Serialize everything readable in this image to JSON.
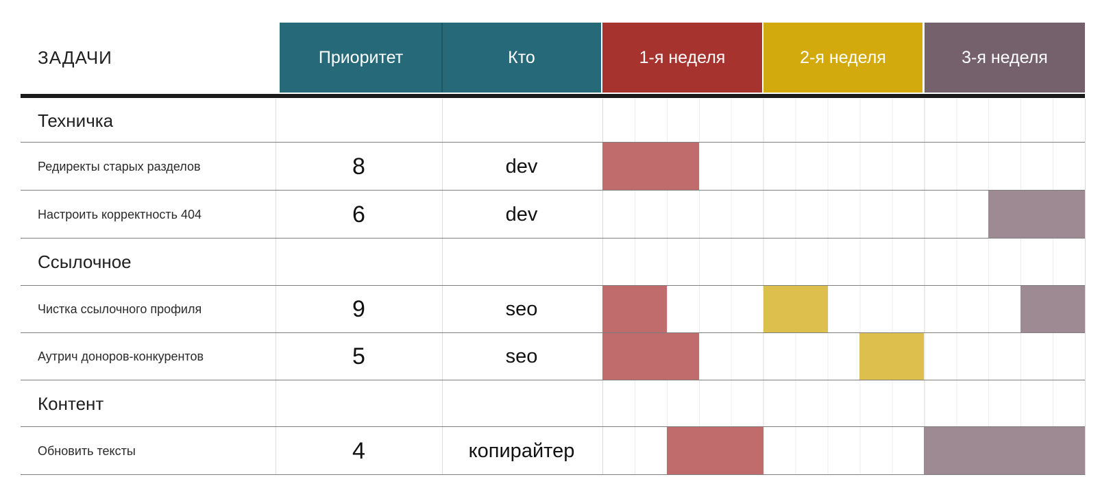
{
  "header": {
    "tasks_label": "ЗАДАЧИ",
    "columns": [
      {
        "label": "Приоритет",
        "color_key": "teal"
      },
      {
        "label": "Кто",
        "color_key": "teal"
      },
      {
        "label": "1-я неделя",
        "color_key": "week1"
      },
      {
        "label": "2-я неделя",
        "color_key": "week2"
      },
      {
        "label": "3-я неделя",
        "color_key": "week3"
      }
    ]
  },
  "colors": {
    "teal": "#266A7A",
    "week1": "#A6332E",
    "week2": "#D2AA0D",
    "week3": "#75616C",
    "bar_week1": "#C06B6C",
    "bar_week2": "#DCBF4D",
    "bar_week3": "#9D8A93",
    "header_text": "#FFFFFF",
    "rule": "#1B1B1B"
  },
  "chart_data": {
    "type": "table",
    "title": "ЗАДАЧИ",
    "columns": [
      "ЗАДАЧИ",
      "Приоритет",
      "Кто",
      "1-я неделя",
      "2-я неделя",
      "3-я неделя"
    ],
    "weeks": [
      "1-я неделя",
      "2-я неделя",
      "3-я неделя"
    ],
    "days_per_week": 5,
    "legend": "gantt bars are drawn in the week color, semi-transparent",
    "rows": [
      {
        "section": "Техничка"
      },
      {
        "task": "Редиректы старых разделов",
        "priority": 8,
        "who": "dev",
        "schedule": [
          {
            "week": 1,
            "day_start": 1,
            "day_end": 3
          }
        ]
      },
      {
        "task": "Настроить корректность 404",
        "priority": 6,
        "who": "dev",
        "schedule": [
          {
            "week": 3,
            "day_start": 3,
            "day_end": 5
          }
        ]
      },
      {
        "section": "Ссылочное"
      },
      {
        "task": "Чистка ссылочного профиля",
        "priority": 9,
        "who": "seo",
        "schedule": [
          {
            "week": 1,
            "day_start": 1,
            "day_end": 2
          },
          {
            "week": 2,
            "day_start": 1,
            "day_end": 2
          },
          {
            "week": 3,
            "day_start": 4,
            "day_end": 5
          }
        ]
      },
      {
        "task": "Аутрич доноров-конкурентов",
        "priority": 5,
        "who": "seo",
        "schedule": [
          {
            "week": 1,
            "day_start": 1,
            "day_end": 3
          },
          {
            "week": 2,
            "day_start": 4,
            "day_end": 5
          }
        ]
      },
      {
        "section": "Контент"
      },
      {
        "task": "Обновить тексты",
        "priority": 4,
        "who": "копирайтер",
        "schedule": [
          {
            "week": 1,
            "day_start": 3,
            "day_end": 5
          },
          {
            "week": 3,
            "day_start": 1,
            "day_end": 5
          }
        ]
      }
    ]
  }
}
